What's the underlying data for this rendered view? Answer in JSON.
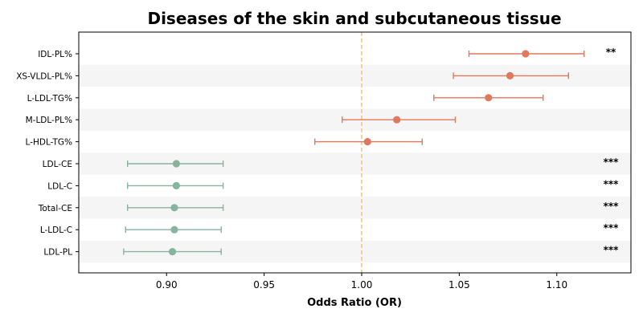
{
  "chart_data": {
    "type": "forest",
    "title": "Diseases of the skin and subcutaneous tissue",
    "xlabel": "Odds Ratio (OR)",
    "xlim": [
      0.855,
      1.138
    ],
    "xticks": [
      "0.90",
      "0.95",
      "1.00",
      "1.05",
      "1.10"
    ],
    "reference_line": 1.0,
    "colors": {
      "positive": "#e0785c",
      "negative": "#86b59c",
      "reference": "#f5c27a",
      "band": "#f5f5f5",
      "axis": "#000000"
    },
    "rows": [
      {
        "label": "IDL-PL%",
        "or": 1.084,
        "lower": 1.055,
        "upper": 1.114,
        "sig": "**"
      },
      {
        "label": "XS-VLDL-PL%",
        "or": 1.076,
        "lower": 1.047,
        "upper": 1.106,
        "sig": ""
      },
      {
        "label": "L-LDL-TG%",
        "or": 1.065,
        "lower": 1.037,
        "upper": 1.093,
        "sig": ""
      },
      {
        "label": "M-LDL-PL%",
        "or": 1.018,
        "lower": 0.99,
        "upper": 1.048,
        "sig": ""
      },
      {
        "label": "L-HDL-TG%",
        "or": 1.003,
        "lower": 0.976,
        "upper": 1.031,
        "sig": ""
      },
      {
        "label": "LDL-CE",
        "or": 0.905,
        "lower": 0.88,
        "upper": 0.929,
        "sig": "***"
      },
      {
        "label": "LDL-C",
        "or": 0.905,
        "lower": 0.88,
        "upper": 0.929,
        "sig": "***"
      },
      {
        "label": "Total-CE",
        "or": 0.904,
        "lower": 0.88,
        "upper": 0.929,
        "sig": "***"
      },
      {
        "label": "L-LDL-C",
        "or": 0.904,
        "lower": 0.879,
        "upper": 0.928,
        "sig": "***"
      },
      {
        "label": "LDL-PL",
        "or": 0.903,
        "lower": 0.878,
        "upper": 0.928,
        "sig": "***"
      }
    ]
  }
}
